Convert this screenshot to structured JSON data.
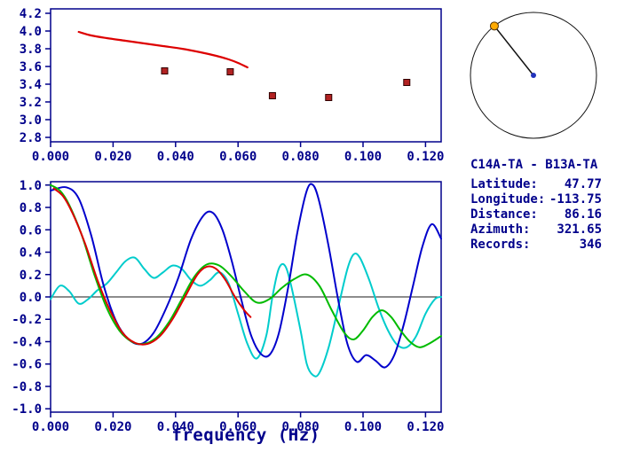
{
  "palette": {
    "frame": "#00008B",
    "text": "#00008B",
    "zero_line": "#1a1a1a",
    "compass_circle": "#111111",
    "compass_line": "#111111"
  },
  "station_info": {
    "title": "C14A-TA - B13A-TA",
    "lines": [
      {
        "label": "Latitude:",
        "value": "47.77"
      },
      {
        "label": "Longitude:",
        "value": "-113.75"
      },
      {
        "label": "Distance:",
        "value": "86.16"
      },
      {
        "label": "Azimuth:",
        "value": "321.65"
      },
      {
        "label": "Records:",
        "value": "346"
      }
    ]
  },
  "chart_data": [
    {
      "id": "dispersion",
      "type": "line",
      "title": "",
      "xlabel": "",
      "ylabel": "",
      "xlim": [
        0,
        0.125
      ],
      "ylim": [
        2.75,
        4.25
      ],
      "xticks": {
        "values": [
          0,
          0.02,
          0.04,
          0.06,
          0.08,
          0.1,
          0.12
        ],
        "labels": [
          "0.000",
          "0.020",
          "0.040",
          "0.060",
          "0.080",
          "0.100",
          "0.120"
        ]
      },
      "yticks": {
        "values": [
          2.8,
          3.0,
          3.2,
          3.4,
          3.6,
          3.8,
          4.0,
          4.2
        ],
        "labels": [
          "2.8",
          "3.0",
          "3.2",
          "3.4",
          "3.6",
          "3.8",
          "4.0",
          "4.2"
        ]
      },
      "zero_line": false,
      "series": [
        {
          "name": "phase-velocity-curve",
          "color": "#dd0000",
          "width": 2.2,
          "points": [
            [
              0.009,
              3.99
            ],
            [
              0.013,
              3.95
            ],
            [
              0.018,
              3.92
            ],
            [
              0.024,
              3.89
            ],
            [
              0.03,
              3.86
            ],
            [
              0.036,
              3.83
            ],
            [
              0.042,
              3.8
            ],
            [
              0.048,
              3.76
            ],
            [
              0.053,
              3.72
            ],
            [
              0.057,
              3.68
            ],
            [
              0.06,
              3.64
            ],
            [
              0.063,
              3.59
            ]
          ]
        }
      ],
      "markers": {
        "name": "velocity-picks",
        "shape": "square",
        "size": 7,
        "fill": "#b22222",
        "stroke": "#300000",
        "points": [
          [
            0.0365,
            3.55
          ],
          [
            0.0575,
            3.54
          ],
          [
            0.071,
            3.27
          ],
          [
            0.089,
            3.25
          ],
          [
            0.114,
            3.42
          ]
        ]
      }
    },
    {
      "id": "spectra",
      "type": "line",
      "title": "",
      "xlabel": "frequency (Hz)",
      "ylabel": "",
      "xlim": [
        0,
        0.125
      ],
      "ylim": [
        -1.03,
        1.03
      ],
      "xticks": {
        "values": [
          0,
          0.02,
          0.04,
          0.06,
          0.08,
          0.1,
          0.12
        ],
        "labels": [
          "0.000",
          "0.020",
          "0.040",
          "0.060",
          "0.080",
          "0.100",
          "0.120"
        ]
      },
      "yticks": {
        "values": [
          1.0,
          0.8,
          0.6,
          0.4,
          0.2,
          0.0,
          -0.2,
          -0.4,
          -0.6,
          -0.8,
          -1.0
        ],
        "labels": [
          "1.0",
          "0.8",
          "0.6",
          "0.4",
          "0.2",
          "0.0",
          "-0.2",
          "-0.4",
          "-0.6",
          "-0.8",
          "-1.0"
        ]
      },
      "zero_line": true,
      "series": [
        {
          "name": "cross-spectrum-cyan",
          "color": "#00cccc",
          "width": 2,
          "points": [
            [
              0.0,
              -0.02
            ],
            [
              0.003,
              0.1
            ],
            [
              0.006,
              0.05
            ],
            [
              0.009,
              -0.06
            ],
            [
              0.012,
              -0.02
            ],
            [
              0.015,
              0.06
            ],
            [
              0.018,
              0.12
            ],
            [
              0.021,
              0.22
            ],
            [
              0.024,
              0.32
            ],
            [
              0.027,
              0.35
            ],
            [
              0.03,
              0.25
            ],
            [
              0.033,
              0.17
            ],
            [
              0.036,
              0.22
            ],
            [
              0.039,
              0.28
            ],
            [
              0.042,
              0.25
            ],
            [
              0.045,
              0.15
            ],
            [
              0.048,
              0.1
            ],
            [
              0.051,
              0.15
            ],
            [
              0.054,
              0.22
            ],
            [
              0.057,
              0.12
            ],
            [
              0.06,
              -0.15
            ],
            [
              0.063,
              -0.42
            ],
            [
              0.066,
              -0.55
            ],
            [
              0.069,
              -0.35
            ],
            [
              0.071,
              0.0
            ],
            [
              0.073,
              0.25
            ],
            [
              0.075,
              0.28
            ],
            [
              0.077,
              0.1
            ],
            [
              0.08,
              -0.3
            ],
            [
              0.082,
              -0.6
            ],
            [
              0.084,
              -0.7
            ],
            [
              0.086,
              -0.68
            ],
            [
              0.089,
              -0.45
            ],
            [
              0.092,
              -0.1
            ],
            [
              0.095,
              0.25
            ],
            [
              0.097,
              0.38
            ],
            [
              0.099,
              0.35
            ],
            [
              0.102,
              0.15
            ],
            [
              0.105,
              -0.1
            ],
            [
              0.108,
              -0.3
            ],
            [
              0.111,
              -0.43
            ],
            [
              0.114,
              -0.45
            ],
            [
              0.117,
              -0.35
            ],
            [
              0.12,
              -0.15
            ],
            [
              0.123,
              -0.02
            ],
            [
              0.125,
              0.0
            ]
          ]
        },
        {
          "name": "cross-spectrum-blue",
          "color": "#0000cc",
          "width": 2,
          "points": [
            [
              0.0,
              0.95
            ],
            [
              0.005,
              0.98
            ],
            [
              0.009,
              0.88
            ],
            [
              0.013,
              0.55
            ],
            [
              0.017,
              0.1
            ],
            [
              0.021,
              -0.22
            ],
            [
              0.025,
              -0.38
            ],
            [
              0.029,
              -0.42
            ],
            [
              0.033,
              -0.32
            ],
            [
              0.037,
              -0.1
            ],
            [
              0.041,
              0.18
            ],
            [
              0.045,
              0.52
            ],
            [
              0.049,
              0.73
            ],
            [
              0.052,
              0.75
            ],
            [
              0.055,
              0.6
            ],
            [
              0.058,
              0.32
            ],
            [
              0.061,
              -0.02
            ],
            [
              0.064,
              -0.33
            ],
            [
              0.067,
              -0.5
            ],
            [
              0.07,
              -0.52
            ],
            [
              0.073,
              -0.33
            ],
            [
              0.076,
              0.08
            ],
            [
              0.079,
              0.58
            ],
            [
              0.082,
              0.95
            ],
            [
              0.084,
              1.0
            ],
            [
              0.086,
              0.85
            ],
            [
              0.089,
              0.45
            ],
            [
              0.092,
              -0.02
            ],
            [
              0.095,
              -0.42
            ],
            [
              0.098,
              -0.58
            ],
            [
              0.101,
              -0.52
            ],
            [
              0.104,
              -0.57
            ],
            [
              0.107,
              -0.63
            ],
            [
              0.11,
              -0.52
            ],
            [
              0.113,
              -0.25
            ],
            [
              0.116,
              0.1
            ],
            [
              0.119,
              0.45
            ],
            [
              0.122,
              0.65
            ],
            [
              0.125,
              0.52
            ]
          ]
        },
        {
          "name": "model-spectrum-green",
          "color": "#00bb00",
          "width": 2,
          "points": [
            [
              0.0,
              1.0
            ],
            [
              0.003,
              0.95
            ],
            [
              0.006,
              0.82
            ],
            [
              0.01,
              0.55
            ],
            [
              0.014,
              0.2
            ],
            [
              0.018,
              -0.1
            ],
            [
              0.022,
              -0.3
            ],
            [
              0.026,
              -0.4
            ],
            [
              0.03,
              -0.42
            ],
            [
              0.034,
              -0.36
            ],
            [
              0.038,
              -0.22
            ],
            [
              0.042,
              -0.02
            ],
            [
              0.046,
              0.18
            ],
            [
              0.05,
              0.29
            ],
            [
              0.054,
              0.28
            ],
            [
              0.058,
              0.18
            ],
            [
              0.062,
              0.05
            ],
            [
              0.066,
              -0.05
            ],
            [
              0.07,
              -0.02
            ],
            [
              0.074,
              0.08
            ],
            [
              0.078,
              0.16
            ],
            [
              0.082,
              0.2
            ],
            [
              0.086,
              0.1
            ],
            [
              0.09,
              -0.12
            ],
            [
              0.094,
              -0.32
            ],
            [
              0.097,
              -0.38
            ],
            [
              0.1,
              -0.3
            ],
            [
              0.103,
              -0.18
            ],
            [
              0.106,
              -0.12
            ],
            [
              0.109,
              -0.18
            ],
            [
              0.112,
              -0.3
            ],
            [
              0.115,
              -0.4
            ],
            [
              0.118,
              -0.45
            ],
            [
              0.121,
              -0.42
            ],
            [
              0.125,
              -0.35
            ]
          ]
        },
        {
          "name": "fitted-spectrum-red",
          "color": "#dd0000",
          "width": 2,
          "points": [
            [
              0.001,
              0.97
            ],
            [
              0.004,
              0.9
            ],
            [
              0.007,
              0.75
            ],
            [
              0.011,
              0.48
            ],
            [
              0.015,
              0.15
            ],
            [
              0.019,
              -0.12
            ],
            [
              0.023,
              -0.32
            ],
            [
              0.027,
              -0.41
            ],
            [
              0.031,
              -0.42
            ],
            [
              0.035,
              -0.35
            ],
            [
              0.039,
              -0.2
            ],
            [
              0.043,
              0.0
            ],
            [
              0.047,
              0.2
            ],
            [
              0.05,
              0.27
            ],
            [
              0.053,
              0.25
            ],
            [
              0.056,
              0.15
            ],
            [
              0.059,
              0.0
            ],
            [
              0.062,
              -0.12
            ],
            [
              0.064,
              -0.18
            ]
          ]
        }
      ]
    },
    {
      "id": "azimuth-compass",
      "type": "compass",
      "azimuth_deg": 321.65,
      "line_color": "#111111",
      "circle_color": "#111111",
      "center_dot_color": "#2233bb",
      "station_dot_color": "#ffaa00",
      "station_dot_edge": "#553300"
    }
  ]
}
